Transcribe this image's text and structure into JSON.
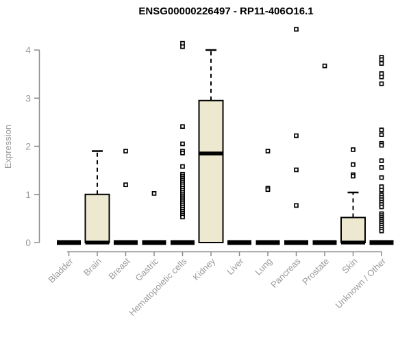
{
  "chart_data": {
    "type": "boxplot",
    "title": "ENSG00000226497 - RP11-406O16.1",
    "ylabel": "Expression",
    "xlabel": "",
    "ylim": [
      0,
      4
    ],
    "yticks": [
      0,
      1,
      2,
      3,
      4
    ],
    "grid": false,
    "legend": "none",
    "categories": [
      "Bladder",
      "Brain",
      "Breast",
      "Gastric",
      "Hematopoietic cells",
      "Kidney",
      "Liver",
      "Lung",
      "Pancreas",
      "Prostate",
      "Skin",
      "Unknown / Other"
    ],
    "boxes": [
      {
        "category": "Bladder",
        "q1": 0,
        "median": 0,
        "q3": 0,
        "whisker_low": 0,
        "whisker_high": 0,
        "outliers": []
      },
      {
        "category": "Brain",
        "q1": 0,
        "median": 0,
        "q3": 1.0,
        "whisker_low": 0,
        "whisker_high": 1.9,
        "outliers": []
      },
      {
        "category": "Breast",
        "q1": 0,
        "median": 0,
        "q3": 0,
        "whisker_low": 0,
        "whisker_high": 0,
        "outliers": [
          1.9,
          1.2
        ]
      },
      {
        "category": "Gastric",
        "q1": 0,
        "median": 0,
        "q3": 0,
        "whisker_low": 0,
        "whisker_high": 0,
        "outliers": [
          1.02
        ]
      },
      {
        "category": "Hematopoietic cells",
        "q1": 0,
        "median": 0,
        "q3": 0,
        "whisker_low": 0,
        "whisker_high": 0,
        "outliers": [
          4.14,
          4.07,
          2.41,
          2.05,
          1.9,
          1.86,
          1.58,
          1.42,
          1.38,
          1.34,
          1.3,
          1.26,
          1.22,
          1.18,
          1.13,
          1.09,
          1.05,
          1.01,
          0.97,
          0.93,
          0.89,
          0.85,
          0.81,
          0.77,
          0.73,
          0.69,
          0.65,
          0.61,
          0.57,
          0.53
        ]
      },
      {
        "category": "Kidney",
        "q1": 0,
        "median": 1.85,
        "q3": 2.95,
        "whisker_low": 0,
        "whisker_high": 4.0,
        "outliers": []
      },
      {
        "category": "Liver",
        "q1": 0,
        "median": 0,
        "q3": 0,
        "whisker_low": 0,
        "whisker_high": 0,
        "outliers": []
      },
      {
        "category": "Lung",
        "q1": 0,
        "median": 0,
        "q3": 0,
        "whisker_low": 0,
        "whisker_high": 0,
        "outliers": [
          1.9,
          1.13,
          1.1
        ]
      },
      {
        "category": "Pancreas",
        "q1": 0,
        "median": 0,
        "q3": 0,
        "whisker_low": 0,
        "whisker_high": 0,
        "outliers": [
          4.43,
          2.22,
          1.51,
          0.77
        ]
      },
      {
        "category": "Prostate",
        "q1": 0,
        "median": 0,
        "q3": 0,
        "whisker_low": 0,
        "whisker_high": 0,
        "outliers": [
          3.67
        ]
      },
      {
        "category": "Skin",
        "q1": 0,
        "median": 0,
        "q3": 0.52,
        "whisker_low": 0,
        "whisker_high": 1.04,
        "outliers": [
          1.93,
          1.62,
          1.41,
          1.38
        ]
      },
      {
        "category": "Unknown / Other",
        "q1": 0,
        "median": 0,
        "q3": 0,
        "whisker_low": 0,
        "whisker_high": 0,
        "outliers": [
          3.85,
          3.8,
          3.72,
          3.51,
          3.44,
          3.3,
          2.34,
          2.24,
          2.06,
          2.02,
          1.7,
          1.56,
          1.35,
          1.16,
          1.09,
          0.99,
          0.94,
          0.89,
          0.84,
          0.79,
          0.74,
          0.6,
          0.56,
          0.52,
          0.48,
          0.44,
          0.4,
          0.36,
          0.32,
          0.28,
          0.24
        ]
      }
    ],
    "colors": {
      "box_fill": "#EDE8D0",
      "box_stroke": "#000000",
      "median": "#000000",
      "whisker": "#000000",
      "outlier_stroke": "#000000",
      "outlier_fill": "#FFFFFF",
      "axis": "#8a8a8a",
      "tick_label": "#9a9a9a",
      "title": "#000000",
      "background": "#FFFFFF"
    }
  }
}
